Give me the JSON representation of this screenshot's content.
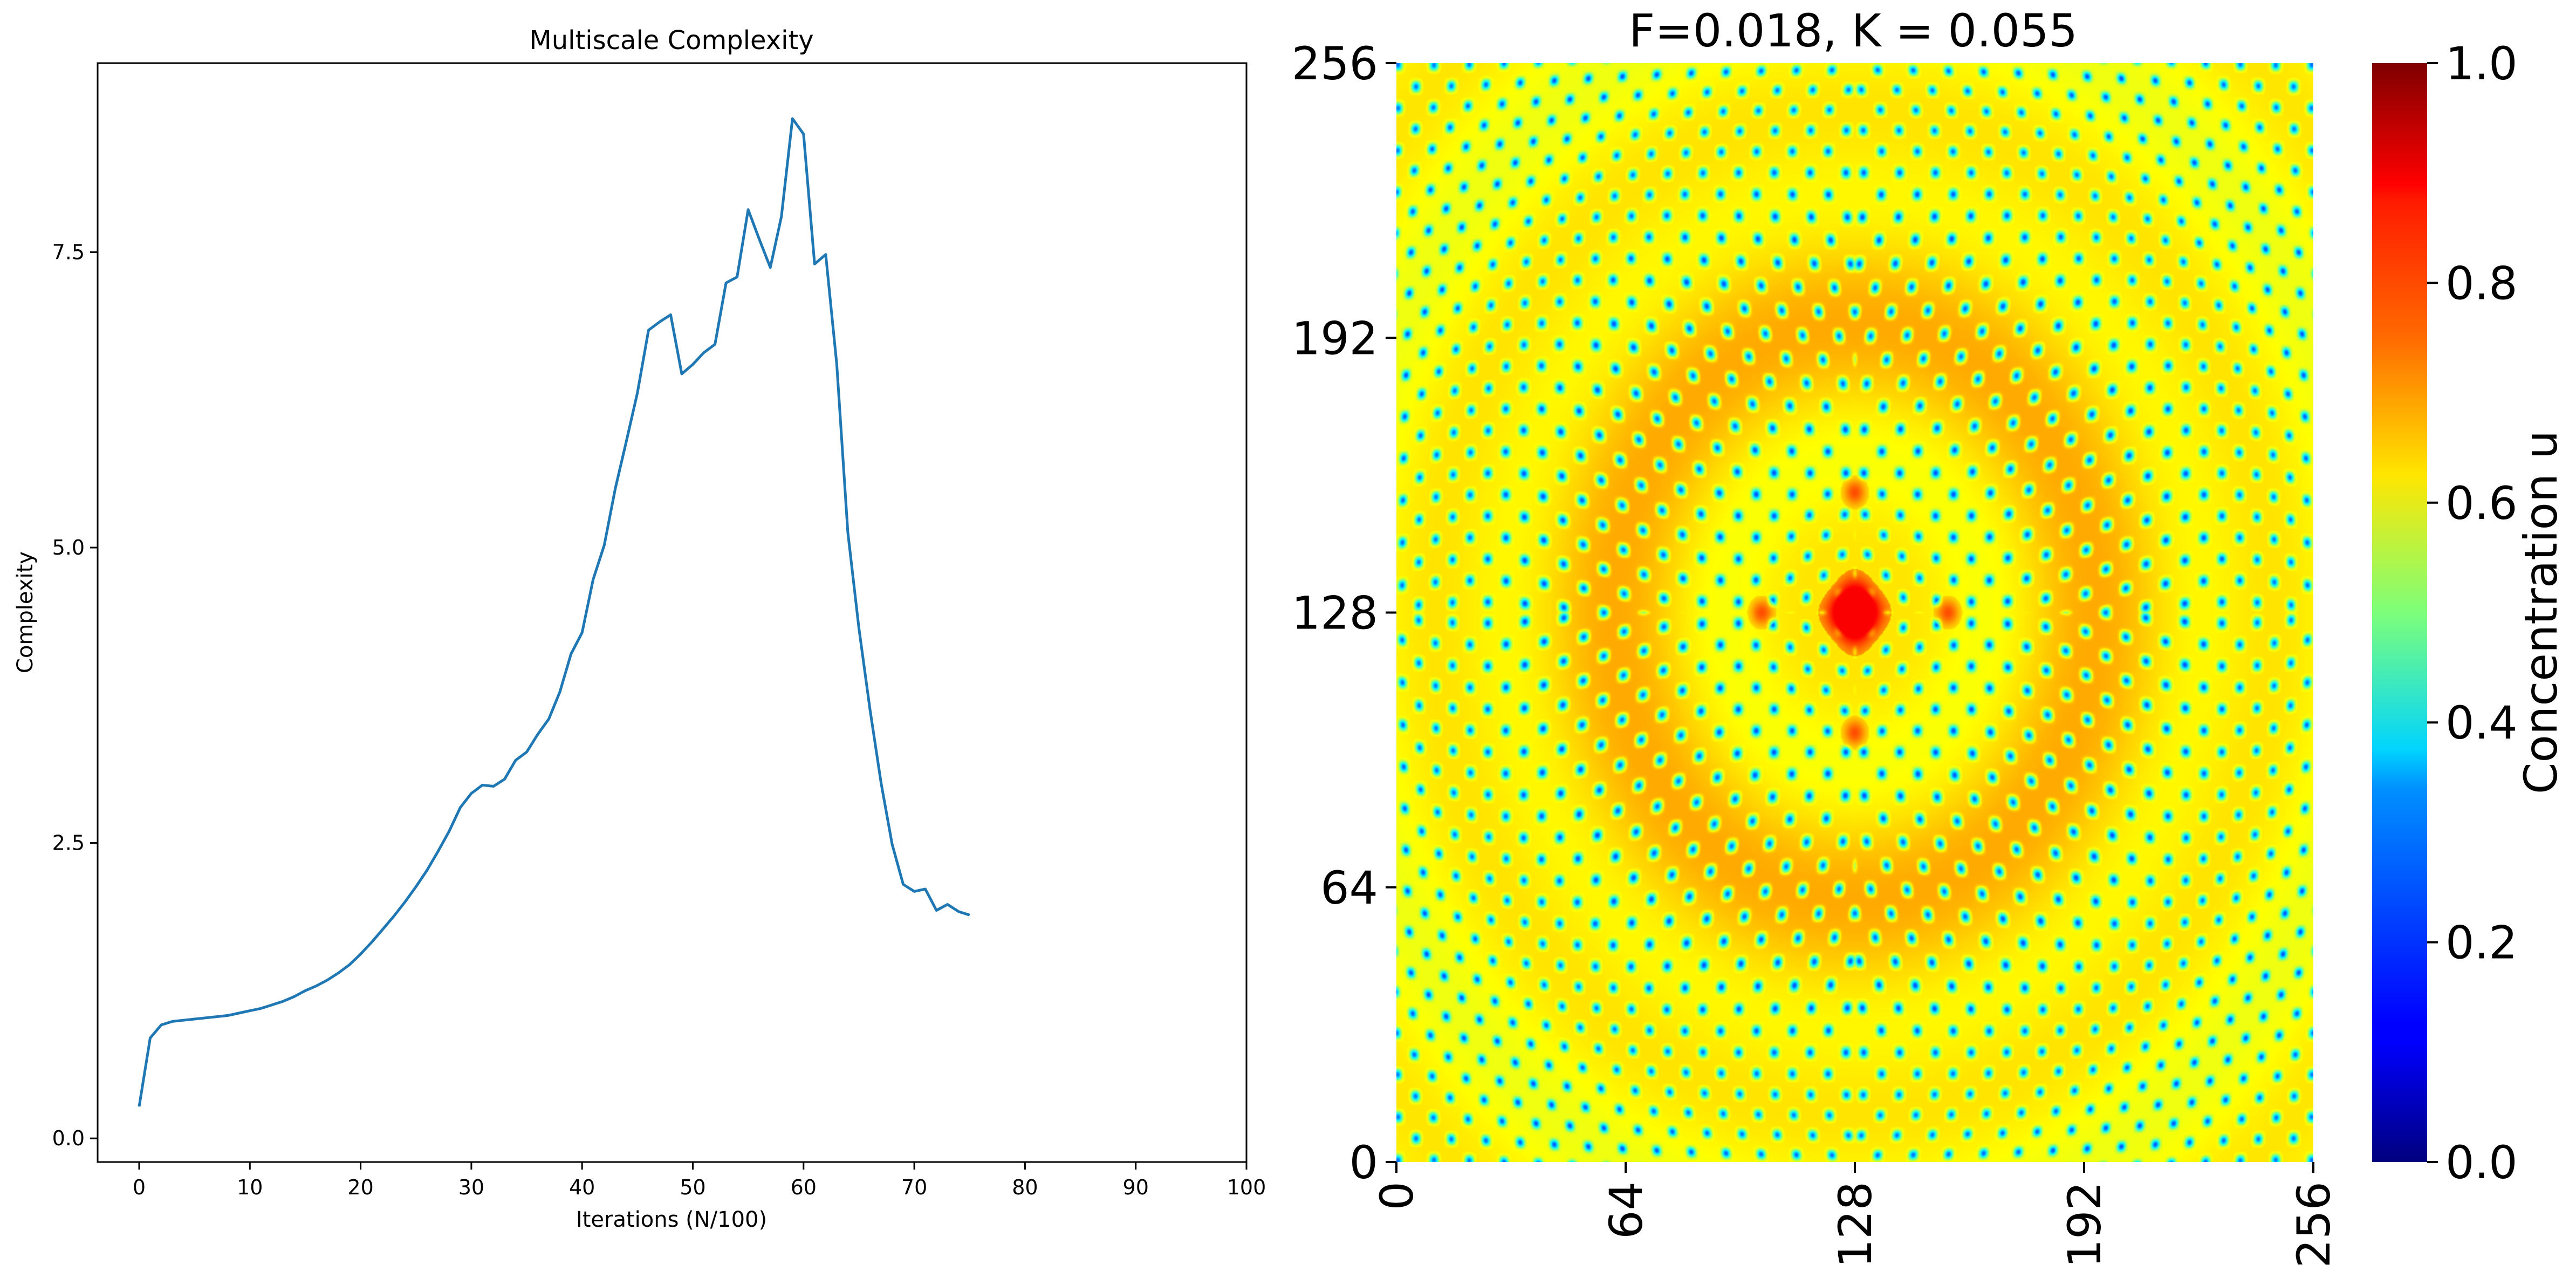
{
  "chart_data": [
    {
      "type": "line",
      "title": "Multiscale Complexity",
      "xlabel": "Iterations (N/100)",
      "ylabel": "Complexity",
      "xlim": [
        -3.75,
        100
      ],
      "ylim": [
        -0.2,
        9.1
      ],
      "xticks": [
        0,
        10,
        20,
        30,
        40,
        50,
        60,
        70,
        80,
        90,
        100
      ],
      "xtick_labels": [
        "0",
        "10",
        "20",
        "30",
        "40",
        "50",
        "60",
        "70",
        "80",
        "90",
        "100"
      ],
      "yticks": [
        0,
        2.5,
        5,
        7.5
      ],
      "ytick_labels": [
        "0.0",
        "2.5",
        "5.0",
        "7.5"
      ],
      "grid": false,
      "line_color": "#1f77b4",
      "series": [
        {
          "x": [
            0,
            1,
            2,
            3,
            4,
            5,
            6,
            7,
            8,
            9,
            10,
            11,
            12,
            13,
            14,
            15,
            16,
            17,
            18,
            19,
            20,
            21,
            22,
            23,
            24,
            25,
            26,
            27,
            28,
            29,
            30,
            31,
            32,
            33,
            34,
            35,
            36,
            37,
            38,
            39,
            40,
            41,
            42,
            43,
            44,
            45,
            46,
            47,
            48,
            49,
            50,
            51,
            52,
            53,
            54,
            55,
            56,
            57,
            58,
            59,
            60,
            61,
            62,
            63,
            64,
            65,
            66,
            67,
            68,
            69,
            70,
            71,
            72,
            73,
            74,
            75
          ],
          "y": [
            0.27,
            0.85,
            0.96,
            0.99,
            1.0,
            1.01,
            1.02,
            1.03,
            1.04,
            1.06,
            1.08,
            1.1,
            1.13,
            1.16,
            1.2,
            1.25,
            1.29,
            1.34,
            1.4,
            1.47,
            1.56,
            1.66,
            1.77,
            1.88,
            2.0,
            2.13,
            2.27,
            2.43,
            2.6,
            2.8,
            2.92,
            2.99,
            2.98,
            3.04,
            3.2,
            3.27,
            3.42,
            3.55,
            3.78,
            4.1,
            4.28,
            4.73,
            5.02,
            5.5,
            5.9,
            6.31,
            6.84,
            6.91,
            6.97,
            6.47,
            6.55,
            6.65,
            6.72,
            7.24,
            7.29,
            7.86,
            7.61,
            7.37,
            7.8,
            8.63,
            8.5,
            7.4,
            7.48,
            6.55,
            5.13,
            4.32,
            3.63,
            3.01,
            2.49,
            2.15,
            2.09,
            2.11,
            1.93,
            1.98,
            1.92,
            1.89
          ]
        }
      ]
    },
    {
      "type": "heatmap",
      "title": "F=0.018, K = 0.055",
      "xlim": [
        0,
        256
      ],
      "ylim": [
        0,
        256
      ],
      "xticks": [
        0,
        64,
        128,
        192,
        256
      ],
      "xtick_labels": [
        "0",
        "64",
        "128",
        "192",
        "256"
      ],
      "yticks": [
        0,
        64,
        128,
        192,
        256
      ],
      "ytick_labels": [
        "0",
        "64",
        "128",
        "192",
        "256"
      ],
      "colormap": "jet",
      "colorbar": {
        "label": "Concentration u",
        "range": [
          0,
          1
        ],
        "ticks": [
          0,
          0.2,
          0.4,
          0.6,
          0.8,
          1.0
        ],
        "tick_labels": [
          "0.0",
          "0.2",
          "0.4",
          "0.6",
          "0.8",
          "1.0"
        ]
      },
      "pattern": {
        "background_value": 0.63,
        "spot_value": 0.22,
        "spot_spacing": 10,
        "center": [
          128,
          128
        ],
        "center_blob_value": 0.88,
        "satellite_spot_value": 0.8
      }
    }
  ]
}
